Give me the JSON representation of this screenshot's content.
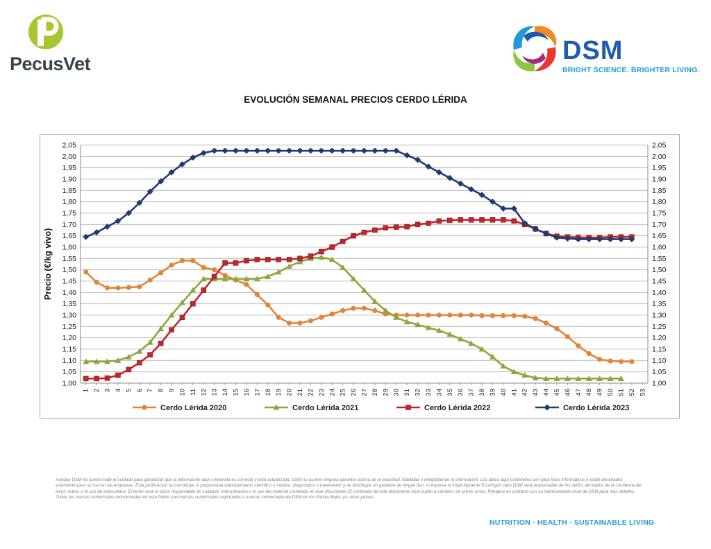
{
  "header": {
    "left_logo": {
      "name": "PecusVet",
      "icon": "pecusvet-logo"
    },
    "right_logo": {
      "name": "DSM",
      "tagline": "BRIGHT SCIENCE. BRIGHTER LIVING.",
      "icon": "dsm-logo"
    }
  },
  "chart_data": {
    "type": "line",
    "title": "EVOLUCIÓN SEMANAL PRECIOS CERDO LÉRIDA",
    "xlabel": "",
    "ylabel": "Precio (€/kg vivo)",
    "ylim": [
      1.0,
      2.05
    ],
    "y_ticks": [
      "1,00",
      "1,05",
      "1,10",
      "1,15",
      "1,20",
      "1,25",
      "1,30",
      "1,35",
      "1,40",
      "1,45",
      "1,50",
      "1,55",
      "1,60",
      "1,65",
      "1,70",
      "1,75",
      "1,80",
      "1,85",
      "1,90",
      "1,95",
      "2,00",
      "2,05"
    ],
    "y_ticks_right": true,
    "categories": [
      "1",
      "2",
      "3",
      "4",
      "5",
      "6",
      "7",
      "8",
      "9",
      "10",
      "11",
      "12",
      "13",
      "14",
      "15",
      "16",
      "17",
      "18",
      "19",
      "20",
      "21",
      "22",
      "23",
      "24",
      "25",
      "26",
      "27",
      "28",
      "29",
      "30",
      "31",
      "32",
      "33",
      "34",
      "35",
      "36",
      "37",
      "38",
      "39",
      "40",
      "41",
      "42",
      "43",
      "44",
      "45",
      "46",
      "47",
      "48",
      "49",
      "50",
      "51",
      "52",
      "53"
    ],
    "grid": true,
    "legend_position": "bottom",
    "series": [
      {
        "name": "Cerdo Lérida 2020",
        "color": "#e0853a",
        "marker": "circle",
        "values": [
          1.49,
          1.445,
          1.42,
          1.42,
          1.422,
          1.425,
          1.455,
          1.487,
          1.52,
          1.54,
          1.54,
          1.51,
          1.5,
          1.475,
          1.455,
          1.435,
          1.39,
          1.345,
          1.29,
          1.265,
          1.265,
          1.275,
          1.29,
          1.305,
          1.32,
          1.33,
          1.33,
          1.32,
          1.305,
          1.3,
          1.3,
          1.3,
          1.3,
          1.3,
          1.3,
          1.3,
          1.3,
          1.298,
          1.298,
          1.298,
          1.298,
          1.295,
          1.285,
          1.265,
          1.24,
          1.205,
          1.165,
          1.13,
          1.105,
          1.098,
          1.095,
          1.095,
          null
        ]
      },
      {
        "name": "Cerdo Lérida 2021",
        "color": "#8ea63e",
        "marker": "triangle",
        "values": [
          1.095,
          1.095,
          1.095,
          1.1,
          1.115,
          1.14,
          1.18,
          1.24,
          1.3,
          1.355,
          1.41,
          1.46,
          1.46,
          1.46,
          1.46,
          1.46,
          1.46,
          1.47,
          1.49,
          1.515,
          1.535,
          1.55,
          1.555,
          1.545,
          1.51,
          1.46,
          1.41,
          1.36,
          1.32,
          1.29,
          1.27,
          1.258,
          1.245,
          1.232,
          1.215,
          1.195,
          1.175,
          1.15,
          1.115,
          1.075,
          1.05,
          1.035,
          1.023,
          1.02,
          1.02,
          1.02,
          1.02,
          1.02,
          1.02,
          1.02,
          1.02,
          null,
          null
        ]
      },
      {
        "name": "Cerdo Lérida 2022",
        "color": "#c0272d",
        "marker": "square",
        "values": [
          1.02,
          1.02,
          1.022,
          1.035,
          1.06,
          1.09,
          1.125,
          1.175,
          1.235,
          1.29,
          1.35,
          1.41,
          1.47,
          1.53,
          1.53,
          1.54,
          1.545,
          1.545,
          1.545,
          1.545,
          1.55,
          1.56,
          1.58,
          1.6,
          1.625,
          1.65,
          1.665,
          1.675,
          1.685,
          1.688,
          1.69,
          1.7,
          1.705,
          1.715,
          1.718,
          1.72,
          1.72,
          1.72,
          1.72,
          1.72,
          1.715,
          1.7,
          1.68,
          1.66,
          1.648,
          1.645,
          1.643,
          1.642,
          1.642,
          1.645,
          1.645,
          1.645,
          null
        ]
      },
      {
        "name": "Cerdo Lérida 2023",
        "color": "#1f3b73",
        "marker": "diamond",
        "values": [
          1.645,
          1.665,
          1.69,
          1.715,
          1.75,
          1.795,
          1.845,
          1.89,
          1.93,
          1.965,
          1.995,
          2.015,
          2.025,
          2.025,
          2.025,
          2.025,
          2.025,
          2.025,
          2.025,
          2.025,
          2.025,
          2.025,
          2.025,
          2.025,
          2.025,
          2.025,
          2.025,
          2.025,
          2.025,
          2.025,
          2.005,
          1.985,
          1.955,
          1.93,
          1.905,
          1.88,
          1.855,
          1.83,
          1.8,
          1.77,
          1.77,
          1.705,
          1.68,
          1.66,
          1.642,
          1.638,
          1.635,
          1.635,
          1.635,
          1.635,
          1.635,
          1.635,
          null
        ]
      }
    ]
  },
  "disclaimer": "Aunque DSM ha puesto todo el cuidado para garantizar que la información aquí contenida es correcta y está actualizada, DSM no asume ninguna garantía acerca de la exactitud, fiabilidad o integridad de la información. Los datos aquí contenidos son para fines informativos y están destinados solamente para su uso en las empresas. Esta publicación no constituye ni proporciona asesoramiento científico o médico, diagnóstico o tratamiento y se distribuye sin garantía de ningún tipo, ni expresa ni implícitamente En ningún caso DSM será responsable de los daños derivados de la confianza del lector sobre, o el uso de estos datos. El lector será el único responsable de cualquier interpretación o el uso del material contenido en este documento El contenido de este documento está sujeto a cambios sin previo aviso. Póngase en contacto con su representante local de DSM para más detalles. Todas las marcas comerciales mencionadas en este folleto son marcas comerciales registradas o marcas comerciales de DSM en los Países Bajos y/u otros países.",
  "footer": {
    "tagline": "NUTRITION · HEALTH · SUSTAINABLE LIVING"
  }
}
